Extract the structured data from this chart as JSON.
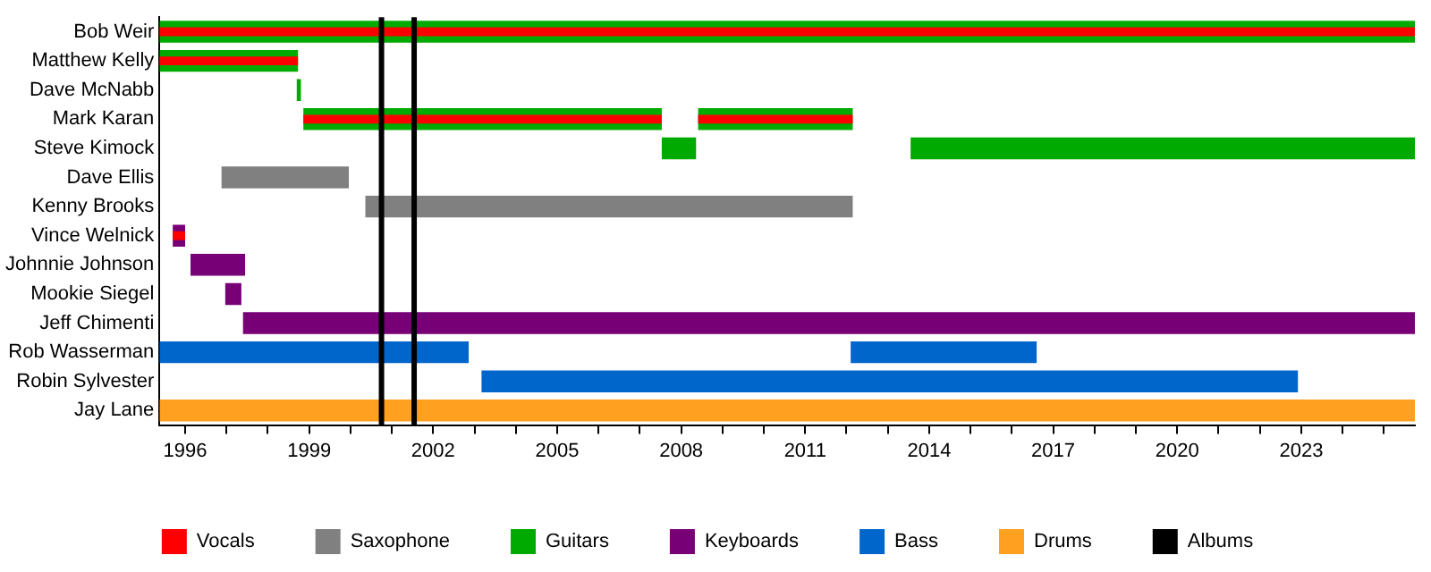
{
  "chart_data": {
    "type": "bar",
    "orientation": "horizontal",
    "legend": "bottom",
    "grid": false,
    "categories": [
      "Bob Weir",
      "Matthew Kelly",
      "Dave McNabb",
      "Mark Karan",
      "Steve Kimock",
      "Dave Ellis",
      "Kenny Brooks",
      "Vince Welnick",
      "Johnnie Johnson",
      "Mookie Siegel",
      "Jeff Chimenti",
      "Rob Wasserman",
      "Robin Sylvester",
      "Jay Lane"
    ],
    "xlim": [
      1995.38,
      2025.75
    ],
    "xticks": [
      1996,
      {
        "value": 1997,
        "label": null
      },
      {
        "value": 1998,
        "label": null
      },
      1999,
      {
        "value": 2000,
        "label": null
      },
      {
        "value": 2001,
        "label": null
      },
      2002,
      {
        "value": 2003,
        "label": null
      },
      {
        "value": 2004,
        "label": null
      },
      2005,
      {
        "value": 2006,
        "label": null
      },
      {
        "value": 2007,
        "label": null
      },
      2008,
      {
        "value": 2009,
        "label": null
      },
      {
        "value": 2010,
        "label": null
      },
      2011,
      {
        "value": 2012,
        "label": null
      },
      {
        "value": 2013,
        "label": null
      },
      2014,
      {
        "value": 2015,
        "label": null
      },
      {
        "value": 2016,
        "label": null
      },
      2017,
      {
        "value": 2018,
        "label": null
      },
      {
        "value": 2019,
        "label": null
      },
      2020,
      {
        "value": 2021,
        "label": null
      },
      {
        "value": 2022,
        "label": null
      },
      2023,
      {
        "value": 2024,
        "label": null
      },
      {
        "value": 2025,
        "label": null
      }
    ],
    "series": [
      {
        "name": "Vocals",
        "color": "#ff0000",
        "base": [
          1995.38,
          1995.38,
          null,
          1998.86,
          null,
          null,
          null,
          1995.7,
          null,
          null,
          null,
          null,
          null,
          null
        ],
        "values": [
          30.37,
          3.35,
          null,
          8.67,
          null,
          null,
          null,
          0.3,
          null,
          null,
          null,
          null,
          null,
          null
        ]
      },
      {
        "color": "#ff0000",
        "base": [
          null,
          null,
          null,
          2008.41,
          null,
          null,
          null,
          null,
          null,
          null,
          null,
          null,
          null,
          null
        ],
        "values": [
          null,
          null,
          null,
          3.74,
          null,
          null,
          null,
          null,
          null,
          null,
          null,
          null,
          null,
          null
        ]
      },
      {
        "name": "Saxophone",
        "color": "#808080",
        "base": [
          null,
          null,
          null,
          null,
          null,
          1996.88,
          2000.36,
          null,
          null,
          null,
          null,
          null,
          null,
          null
        ],
        "values": [
          null,
          null,
          null,
          null,
          null,
          3.08,
          11.79,
          null,
          null,
          null,
          null,
          null,
          null,
          null
        ]
      },
      {
        "name": "Guitars",
        "color": "#00aa00",
        "base": [
          1995.38,
          1995.38,
          1998.7,
          1998.86,
          2007.53,
          null,
          null,
          null,
          null,
          null,
          null,
          null,
          null,
          null
        ],
        "values": [
          30.37,
          3.35,
          0.1,
          8.67,
          0.83,
          null,
          null,
          null,
          null,
          null,
          null,
          null,
          null,
          null
        ]
      },
      {
        "color": "#00aa00",
        "base": [
          null,
          null,
          null,
          2008.41,
          2013.55,
          null,
          null,
          null,
          null,
          null,
          null,
          null,
          null,
          null
        ],
        "values": [
          null,
          null,
          null,
          3.74,
          12.2,
          null,
          null,
          null,
          null,
          null,
          null,
          null,
          null,
          null
        ]
      },
      {
        "name": "Keyboards",
        "color": "#770077",
        "base": [
          null,
          null,
          null,
          null,
          null,
          null,
          null,
          1995.7,
          1996.13,
          1996.97,
          1997.4,
          null,
          null,
          null
        ],
        "values": [
          null,
          null,
          null,
          null,
          null,
          null,
          null,
          0.3,
          1.32,
          0.39,
          28.35,
          null,
          null,
          null
        ]
      },
      {
        "name": "Bass",
        "color": "#0066cc",
        "base": [
          null,
          null,
          null,
          null,
          null,
          null,
          null,
          null,
          null,
          null,
          null,
          1995.38,
          2003.17,
          null
        ],
        "values": [
          null,
          null,
          null,
          null,
          null,
          null,
          null,
          null,
          null,
          null,
          null,
          7.48,
          19.75,
          null
        ]
      },
      {
        "color": "#0066cc",
        "base": [
          null,
          null,
          null,
          null,
          null,
          null,
          null,
          null,
          null,
          null,
          null,
          2012.1,
          null,
          null
        ],
        "values": [
          null,
          null,
          null,
          null,
          null,
          null,
          null,
          null,
          null,
          null,
          null,
          4.5,
          null,
          null
        ]
      },
      {
        "name": "Drums",
        "color": "#ffa020",
        "base": [
          null,
          null,
          null,
          null,
          null,
          null,
          null,
          null,
          null,
          null,
          null,
          null,
          null,
          1995.38
        ],
        "values": [
          null,
          null,
          null,
          null,
          null,
          null,
          null,
          null,
          null,
          null,
          null,
          null,
          null,
          30.37
        ]
      }
    ],
    "ref_lines": [
      {
        "axis": "x",
        "value": 2000.75,
        "label": "Albums",
        "color": "#000000"
      },
      {
        "axis": "x",
        "value": 2001.54,
        "color": "#000000"
      }
    ]
  }
}
